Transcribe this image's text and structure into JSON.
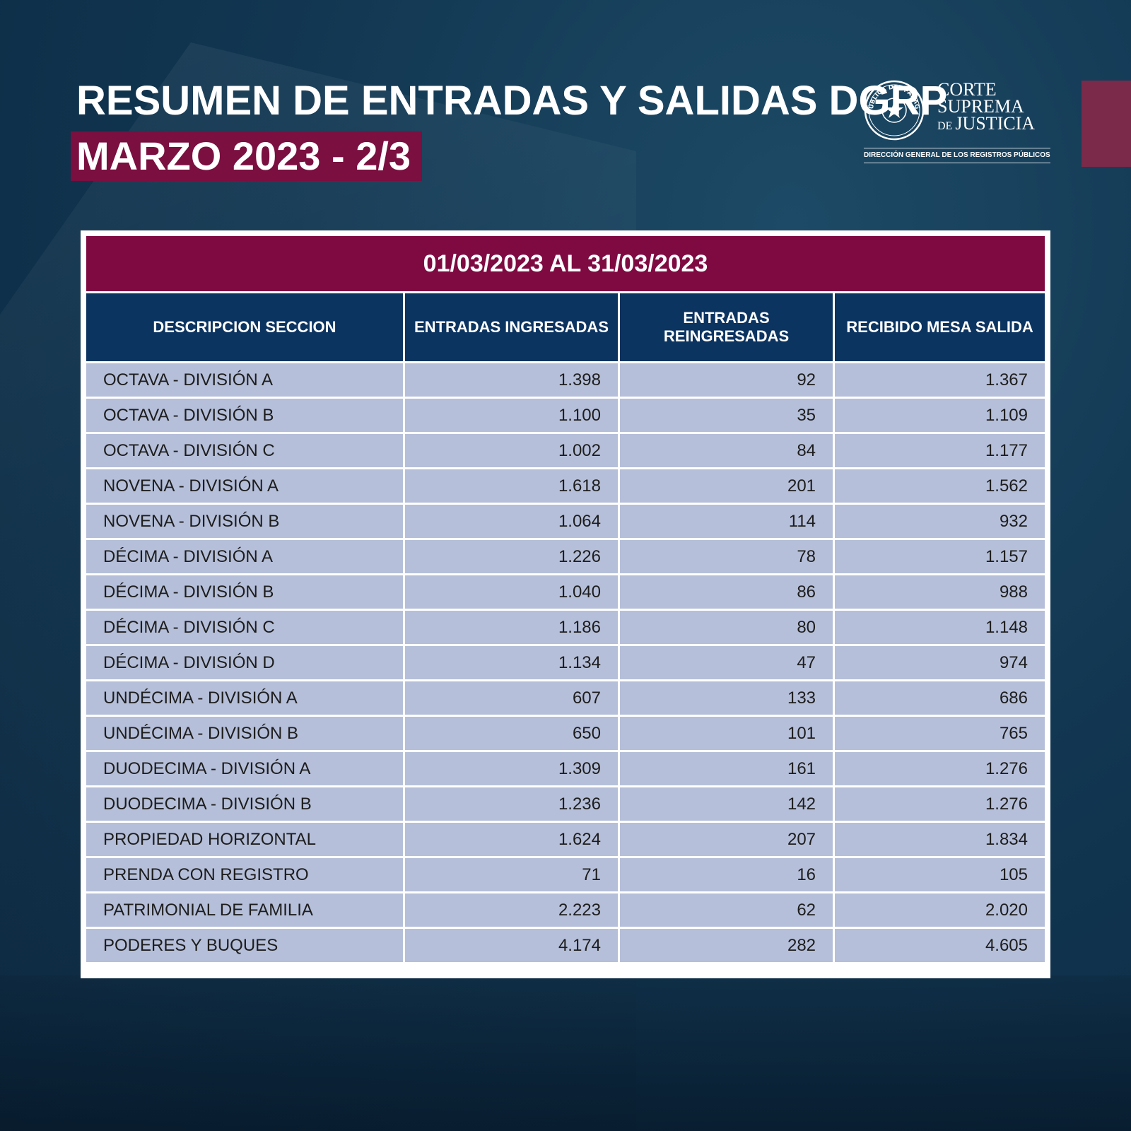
{
  "header": {
    "title": "RESUMEN DE ENTRADAS Y SALIDAS DGRP",
    "subtitle": "MARZO 2023 - 2/3"
  },
  "logo": {
    "seal_text": "REPÚBLICA DEL PARAGUAY",
    "line1": "CORTE",
    "line2": "SUPREMA",
    "line3_prefix": "DE",
    "line3": "JUSTICIA",
    "department": "DIRECCIÓN GENERAL DE LOS REGISTROS PÚBLICOS"
  },
  "colors": {
    "background": "#123752",
    "accent": "#7f0a42",
    "header_cell": "#0c3461",
    "body_cell": "#b5bfd9"
  },
  "table": {
    "period": "01/03/2023 AL 31/03/2023",
    "columns": [
      "DESCRIPCION SECCION",
      "ENTRADAS INGRESADAS",
      "ENTRADAS REINGRESADAS",
      "RECIBIDO MESA SALIDA"
    ],
    "rows": [
      [
        "OCTAVA - DIVISIÓN A",
        "1.398",
        "92",
        "1.367"
      ],
      [
        "OCTAVA - DIVISIÓN B",
        "1.100",
        "35",
        "1.109"
      ],
      [
        "OCTAVA - DIVISIÓN C",
        "1.002",
        "84",
        "1.177"
      ],
      [
        "NOVENA - DIVISIÓN A",
        "1.618",
        "201",
        "1.562"
      ],
      [
        "NOVENA - DIVISIÓN B",
        "1.064",
        "114",
        "932"
      ],
      [
        "DÉCIMA - DIVISIÓN A",
        "1.226",
        "78",
        "1.157"
      ],
      [
        "DÉCIMA - DIVISIÓN B",
        "1.040",
        "86",
        "988"
      ],
      [
        "DÉCIMA - DIVISIÓN C",
        "1.186",
        "80",
        "1.148"
      ],
      [
        "DÉCIMA - DIVISIÓN D",
        "1.134",
        "47",
        "974"
      ],
      [
        "UNDÉCIMA - DIVISIÓN A",
        "607",
        "133",
        "686"
      ],
      [
        "UNDÉCIMA - DIVISIÓN B",
        "650",
        "101",
        "765"
      ],
      [
        "DUODECIMA - DIVISIÓN A",
        "1.309",
        "161",
        "1.276"
      ],
      [
        "DUODECIMA - DIVISIÓN B",
        "1.236",
        "142",
        "1.276"
      ],
      [
        "PROPIEDAD HORIZONTAL",
        "1.624",
        "207",
        "1.834"
      ],
      [
        "PRENDA CON REGISTRO",
        "71",
        "16",
        "105"
      ],
      [
        "PATRIMONIAL DE FAMILIA",
        "2.223",
        "62",
        "2.020"
      ],
      [
        "PODERES Y BUQUES",
        "4.174",
        "282",
        "4.605"
      ]
    ]
  }
}
